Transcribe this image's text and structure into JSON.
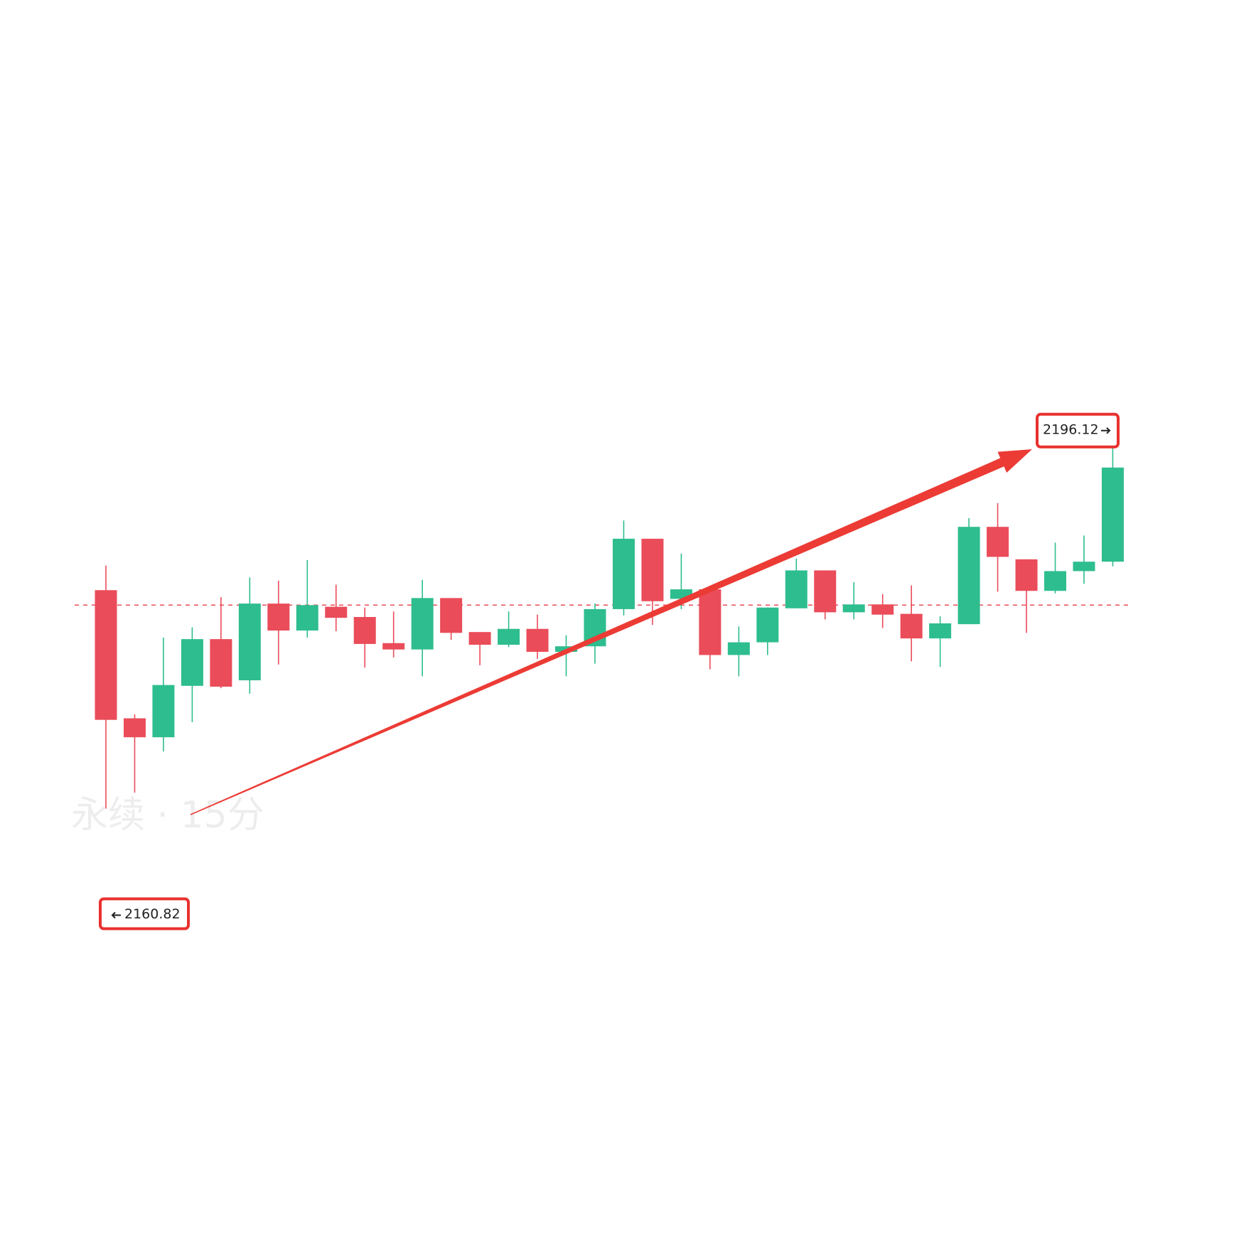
{
  "chart_data": {
    "type": "candlestick",
    "watermark": "永续 · 15分",
    "up_color": "#2ebd8f",
    "down_color": "#ea4c5a",
    "ylim": [
      2119.29,
      2239.75
    ],
    "price_line": 2180.68,
    "annotations": {
      "high": 2196.12,
      "low": 2160.82
    },
    "open": [
      2182.14,
      2169.63,
      2167.78,
      2172.8,
      2177.36,
      2173.34,
      2180.83,
      2178.2,
      2180.52,
      2179.52,
      2176.97,
      2176.35,
      2181.37,
      2178.05,
      2176.81,
      2178.36,
      2176.12,
      2176.66,
      2180.29,
      2187.16,
      2181.29,
      2182.22,
      2175.81,
      2177.05,
      2180.37,
      2184.07,
      2179.98,
      2180.75,
      2179.83,
      2177.43,
      2178.82,
      2188.32,
      2185.15,
      2182.07,
      2184.0,
      2184.92
    ],
    "high": [
      2184.54,
      2170.02,
      2177.51,
      2178.51,
      2181.45,
      2183.38,
      2183.07,
      2185.08,
      2182.68,
      2180.44,
      2180.06,
      2183.15,
      2181.37,
      2178.05,
      2180.06,
      2179.75,
      2177.74,
      2180.83,
      2188.94,
      2187.16,
      2185.7,
      2182.22,
      2178.59,
      2180.44,
      2185.23,
      2184.07,
      2182.92,
      2181.76,
      2182.61,
      2179.59,
      2189.17,
      2190.64,
      2185.15,
      2186.78,
      2187.47,
      2196.12
    ],
    "low": [
      2160.82,
      2162.37,
      2166.39,
      2169.25,
      2172.57,
      2172.03,
      2174.88,
      2177.51,
      2178.13,
      2174.58,
      2175.58,
      2173.73,
      2177.28,
      2174.81,
      2176.58,
      2175.43,
      2173.73,
      2174.96,
      2179.67,
      2178.75,
      2180.29,
      2174.42,
      2173.73,
      2175.81,
      2180.37,
      2179.29,
      2179.29,
      2178.44,
      2175.19,
      2174.65,
      2178.82,
      2181.99,
      2177.97,
      2181.83,
      2182.76,
      2184.46
    ],
    "close": [
      2169.48,
      2167.78,
      2172.88,
      2177.36,
      2172.72,
      2180.83,
      2178.2,
      2180.68,
      2179.44,
      2176.89,
      2176.35,
      2181.37,
      2177.97,
      2176.81,
      2178.36,
      2176.12,
      2176.66,
      2180.29,
      2187.16,
      2181.06,
      2182.22,
      2175.81,
      2177.05,
      2180.44,
      2184.07,
      2179.98,
      2180.75,
      2179.75,
      2177.43,
      2178.9,
      2188.32,
      2185.39,
      2182.07,
      2184.0,
      2184.92,
      2194.11
    ]
  }
}
